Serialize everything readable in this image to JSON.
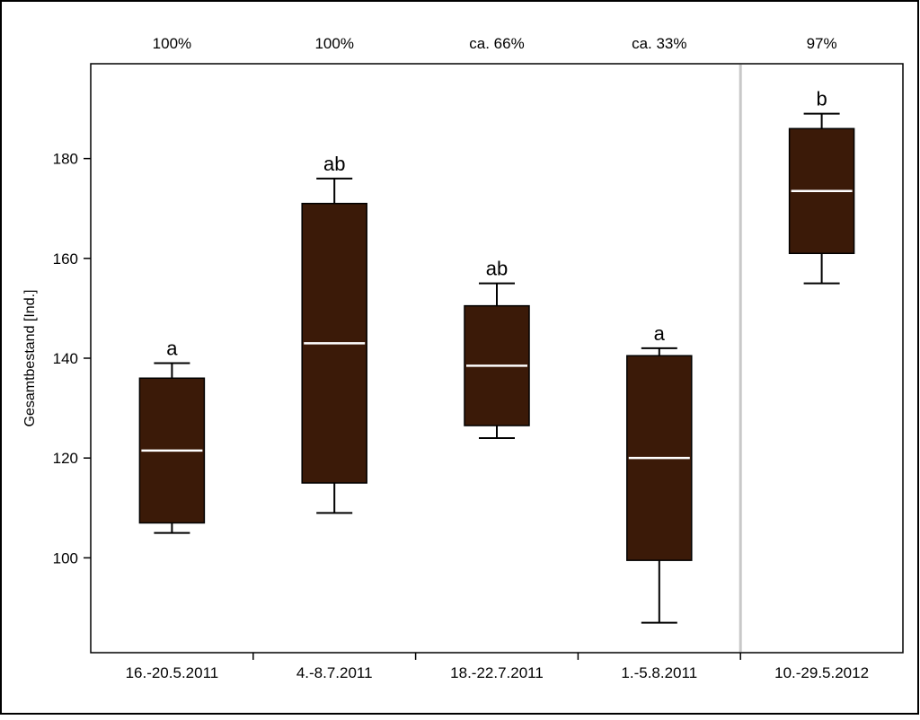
{
  "chart_data": {
    "type": "box",
    "title": "",
    "xlabel": "",
    "ylabel": "Gesamtbestand [Ind.]",
    "ylim": [
      81,
      199
    ],
    "yticks": [
      100,
      120,
      140,
      160,
      180
    ],
    "categories": [
      "16.-20.5.2011",
      "4.-8.7.2011",
      "18.-22.7.2011",
      "1.-5.8.2011",
      "10.-29.5.2012"
    ],
    "top_labels": [
      "100%",
      "100%",
      "ca. 66%",
      "ca. 33%",
      "97%"
    ],
    "significance": [
      "a",
      "ab",
      "ab",
      "a",
      "b"
    ],
    "boxes": [
      {
        "whisker_low": 105,
        "q1": 107,
        "median": 121.5,
        "q3": 136,
        "whisker_high": 139
      },
      {
        "whisker_low": 109,
        "q1": 115,
        "median": 143,
        "q3": 171,
        "whisker_high": 176
      },
      {
        "whisker_low": 124,
        "q1": 126.5,
        "median": 138.5,
        "q3": 150.5,
        "whisker_high": 155
      },
      {
        "whisker_low": 87,
        "q1": 99.5,
        "median": 120,
        "q3": 140.5,
        "whisker_high": 142
      },
      {
        "whisker_low": 155,
        "q1": 161,
        "median": 173.5,
        "q3": 186,
        "whisker_high": 189
      }
    ],
    "separator_after_category": 3,
    "grid": false,
    "colors": {
      "box_fill": "#3b1a08",
      "median_line": "#ffffff",
      "separator": "#c8c8c8"
    }
  }
}
